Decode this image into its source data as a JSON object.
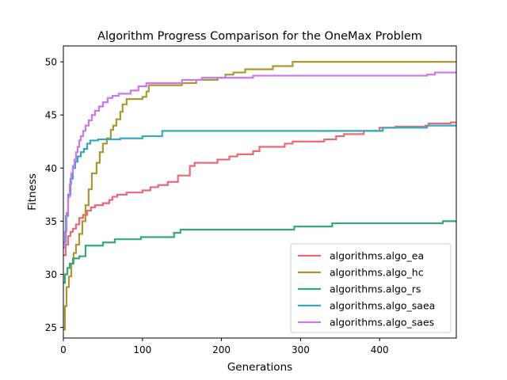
{
  "chart_data": {
    "type": "line",
    "title": "Algorithm Progress Comparison for the OneMax Problem",
    "xlabel": "Generations",
    "ylabel": "Fitness",
    "xlim": [
      0,
      497
    ],
    "ylim": [
      24,
      51.5
    ],
    "xticks": [
      0,
      100,
      200,
      300,
      400
    ],
    "yticks": [
      25,
      30,
      35,
      40,
      45,
      50
    ],
    "grid": false,
    "legend_position": "lower-right",
    "series": [
      {
        "name": "algorithms.algo_ea",
        "color": "#ee6677",
        "points": [
          [
            0,
            31.8
          ],
          [
            3,
            32.8
          ],
          [
            6,
            33.6
          ],
          [
            9,
            34.0
          ],
          [
            12,
            34.3
          ],
          [
            16,
            34.7
          ],
          [
            20,
            35.3
          ],
          [
            25,
            35.6
          ],
          [
            30,
            36.0
          ],
          [
            35,
            36.3
          ],
          [
            40,
            36.5
          ],
          [
            50,
            36.7
          ],
          [
            58,
            37.0
          ],
          [
            62,
            37.3
          ],
          [
            68,
            37.5
          ],
          [
            80,
            37.7
          ],
          [
            100,
            37.9
          ],
          [
            110,
            38.2
          ],
          [
            120,
            38.4
          ],
          [
            132,
            38.7
          ],
          [
            145,
            39.3
          ],
          [
            160,
            40.2
          ],
          [
            166,
            40.5
          ],
          [
            195,
            40.8
          ],
          [
            210,
            41.1
          ],
          [
            220,
            41.3
          ],
          [
            240,
            41.6
          ],
          [
            248,
            42.0
          ],
          [
            280,
            42.3
          ],
          [
            290,
            42.5
          ],
          [
            330,
            42.7
          ],
          [
            345,
            43.0
          ],
          [
            355,
            43.2
          ],
          [
            380,
            43.5
          ],
          [
            400,
            43.8
          ],
          [
            420,
            43.9
          ],
          [
            458,
            44.0
          ],
          [
            462,
            44.2
          ],
          [
            490,
            44.3
          ],
          [
            497,
            44.3
          ]
        ]
      },
      {
        "name": "algorithms.algo_hc",
        "color": "#aa9933",
        "points": [
          [
            0,
            24.8
          ],
          [
            2,
            27.0
          ],
          [
            4,
            28.8
          ],
          [
            7,
            29.8
          ],
          [
            10,
            31.0
          ],
          [
            13,
            32.0
          ],
          [
            16,
            32.8
          ],
          [
            20,
            33.8
          ],
          [
            24,
            35.0
          ],
          [
            28,
            36.5
          ],
          [
            32,
            38.0
          ],
          [
            36,
            39.5
          ],
          [
            42,
            40.5
          ],
          [
            46,
            41.5
          ],
          [
            50,
            42.3
          ],
          [
            55,
            42.8
          ],
          [
            60,
            43.6
          ],
          [
            63,
            44.0
          ],
          [
            67,
            44.6
          ],
          [
            72,
            45.3
          ],
          [
            75,
            46.0
          ],
          [
            80,
            46.5
          ],
          [
            100,
            46.7
          ],
          [
            105,
            47.2
          ],
          [
            108,
            47.8
          ],
          [
            140,
            47.8
          ],
          [
            150,
            48.0
          ],
          [
            168,
            48.3
          ],
          [
            195,
            48.5
          ],
          [
            205,
            48.8
          ],
          [
            215,
            49.0
          ],
          [
            230,
            49.3
          ],
          [
            265,
            49.6
          ],
          [
            290,
            50.0
          ],
          [
            497,
            50.0
          ]
        ]
      },
      {
        "name": "algorithms.algo_rs",
        "color": "#33aa77",
        "points": [
          [
            0,
            29.2
          ],
          [
            2,
            30.0
          ],
          [
            5,
            30.6
          ],
          [
            8,
            31.0
          ],
          [
            12,
            31.5
          ],
          [
            20,
            31.7
          ],
          [
            28,
            32.7
          ],
          [
            50,
            33.0
          ],
          [
            65,
            33.3
          ],
          [
            98,
            33.5
          ],
          [
            140,
            33.9
          ],
          [
            148,
            34.2
          ],
          [
            292,
            34.5
          ],
          [
            340,
            34.8
          ],
          [
            480,
            35.0
          ],
          [
            497,
            35.0
          ]
        ]
      },
      {
        "name": "algorithms.algo_saea",
        "color": "#33aabb",
        "points": [
          [
            0,
            33.0
          ],
          [
            3,
            35.5
          ],
          [
            6,
            37.5
          ],
          [
            9,
            39.0
          ],
          [
            12,
            40.0
          ],
          [
            15,
            40.6
          ],
          [
            18,
            41.1
          ],
          [
            22,
            41.5
          ],
          [
            26,
            41.8
          ],
          [
            30,
            42.3
          ],
          [
            34,
            42.6
          ],
          [
            44,
            42.7
          ],
          [
            72,
            42.8
          ],
          [
            100,
            43.0
          ],
          [
            125,
            43.5
          ],
          [
            400,
            43.5
          ],
          [
            404,
            43.8
          ],
          [
            460,
            44.0
          ],
          [
            497,
            44.0
          ]
        ]
      },
      {
        "name": "algorithms.algo_saes",
        "color": "#cc77ee",
        "points": [
          [
            0,
            32.5
          ],
          [
            2,
            34.0
          ],
          [
            4,
            35.8
          ],
          [
            6,
            37.3
          ],
          [
            8,
            38.5
          ],
          [
            10,
            39.5
          ],
          [
            12,
            40.2
          ],
          [
            14,
            40.8
          ],
          [
            16,
            41.5
          ],
          [
            18,
            42.0
          ],
          [
            20,
            42.6
          ],
          [
            22,
            43.0
          ],
          [
            25,
            43.5
          ],
          [
            28,
            44.0
          ],
          [
            32,
            44.5
          ],
          [
            36,
            45.0
          ],
          [
            40,
            45.4
          ],
          [
            45,
            45.8
          ],
          [
            50,
            46.2
          ],
          [
            56,
            46.6
          ],
          [
            62,
            46.8
          ],
          [
            70,
            47.0
          ],
          [
            85,
            47.3
          ],
          [
            95,
            47.7
          ],
          [
            105,
            48.0
          ],
          [
            150,
            48.3
          ],
          [
            175,
            48.5
          ],
          [
            240,
            48.7
          ],
          [
            460,
            48.8
          ],
          [
            470,
            49.0
          ],
          [
            497,
            49.0
          ]
        ]
      }
    ]
  }
}
